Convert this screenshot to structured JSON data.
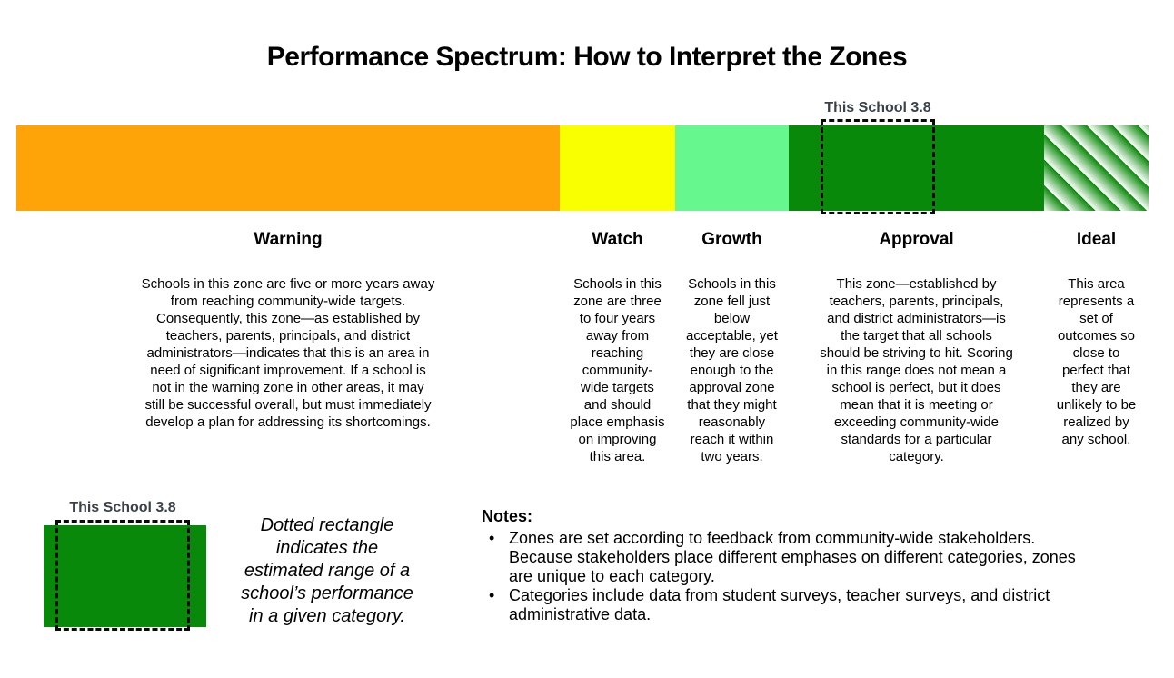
{
  "title": "Performance Spectrum: How to Interpret the Zones",
  "school_marker": {
    "label": "This School 3.8",
    "label_color": "#3a4148",
    "border_color": "#0a0a0a"
  },
  "spectrum": {
    "zones": [
      {
        "label": "Warning",
        "color": "#FFA408",
        "description": "Schools in this zone are five or more years away\nfrom reaching community-wide targets.\nConsequently, this zone—as established by\nteachers, parents, principals, and district\nadministrators—indicates that this is an area in\nneed of significant improvement. If a school is\nnot in the warning zone in other areas, it may\nstill be successful overall, but must immediately\ndevelop a plan for addressing its shortcomings."
      },
      {
        "label": "Watch",
        "color": "#FAFF00",
        "description": "Schools in this\nzone are three\nto four years\naway from\nreaching\ncommunity-\nwide targets\nand should\nplace emphasis\non improving\nthis area."
      },
      {
        "label": "Growth",
        "color": "#66F78F",
        "description": "Schools in this\nzone fell just\nbelow\nacceptable, yet\nthey are close\nenough to the\napproval zone\nthat they might\nreasonably\nreach it within\ntwo years."
      },
      {
        "label": "Approval",
        "color": "#098909",
        "description": "This zone—established by\nteachers, parents, principals,\nand district administrators—is\nthe target that all schools\nshould be striving to hit. Scoring\nin this range does not mean a\nschool is perfect, but it does\nmean that it is meeting or\nexceeding community-wide\nstandards for a particular\ncategory."
      },
      {
        "label": "Ideal",
        "color": "#098909",
        "pattern": "diagonal-stripes",
        "description": "This area\nrepresents a\nset of\noutcomes so\nclose to\nperfect that\nthey are\nunlikely to be\nrealized by\nany school."
      }
    ]
  },
  "legend": {
    "marker_label": "This School 3.8",
    "caption": "Dotted rectangle\nindicates the\nestimated range of a\nschool’s performance\nin a given category."
  },
  "notes": {
    "heading": "Notes:",
    "bullet": "•",
    "items": [
      {
        "text": "Zones are set according to feedback from community-wide stakeholders.\nBecause stakeholders place different emphases on different categories, zones\nare unique to each category."
      },
      {
        "text": "Categories include data from student surveys, teacher surveys, and district\nadministrative data."
      }
    ]
  }
}
